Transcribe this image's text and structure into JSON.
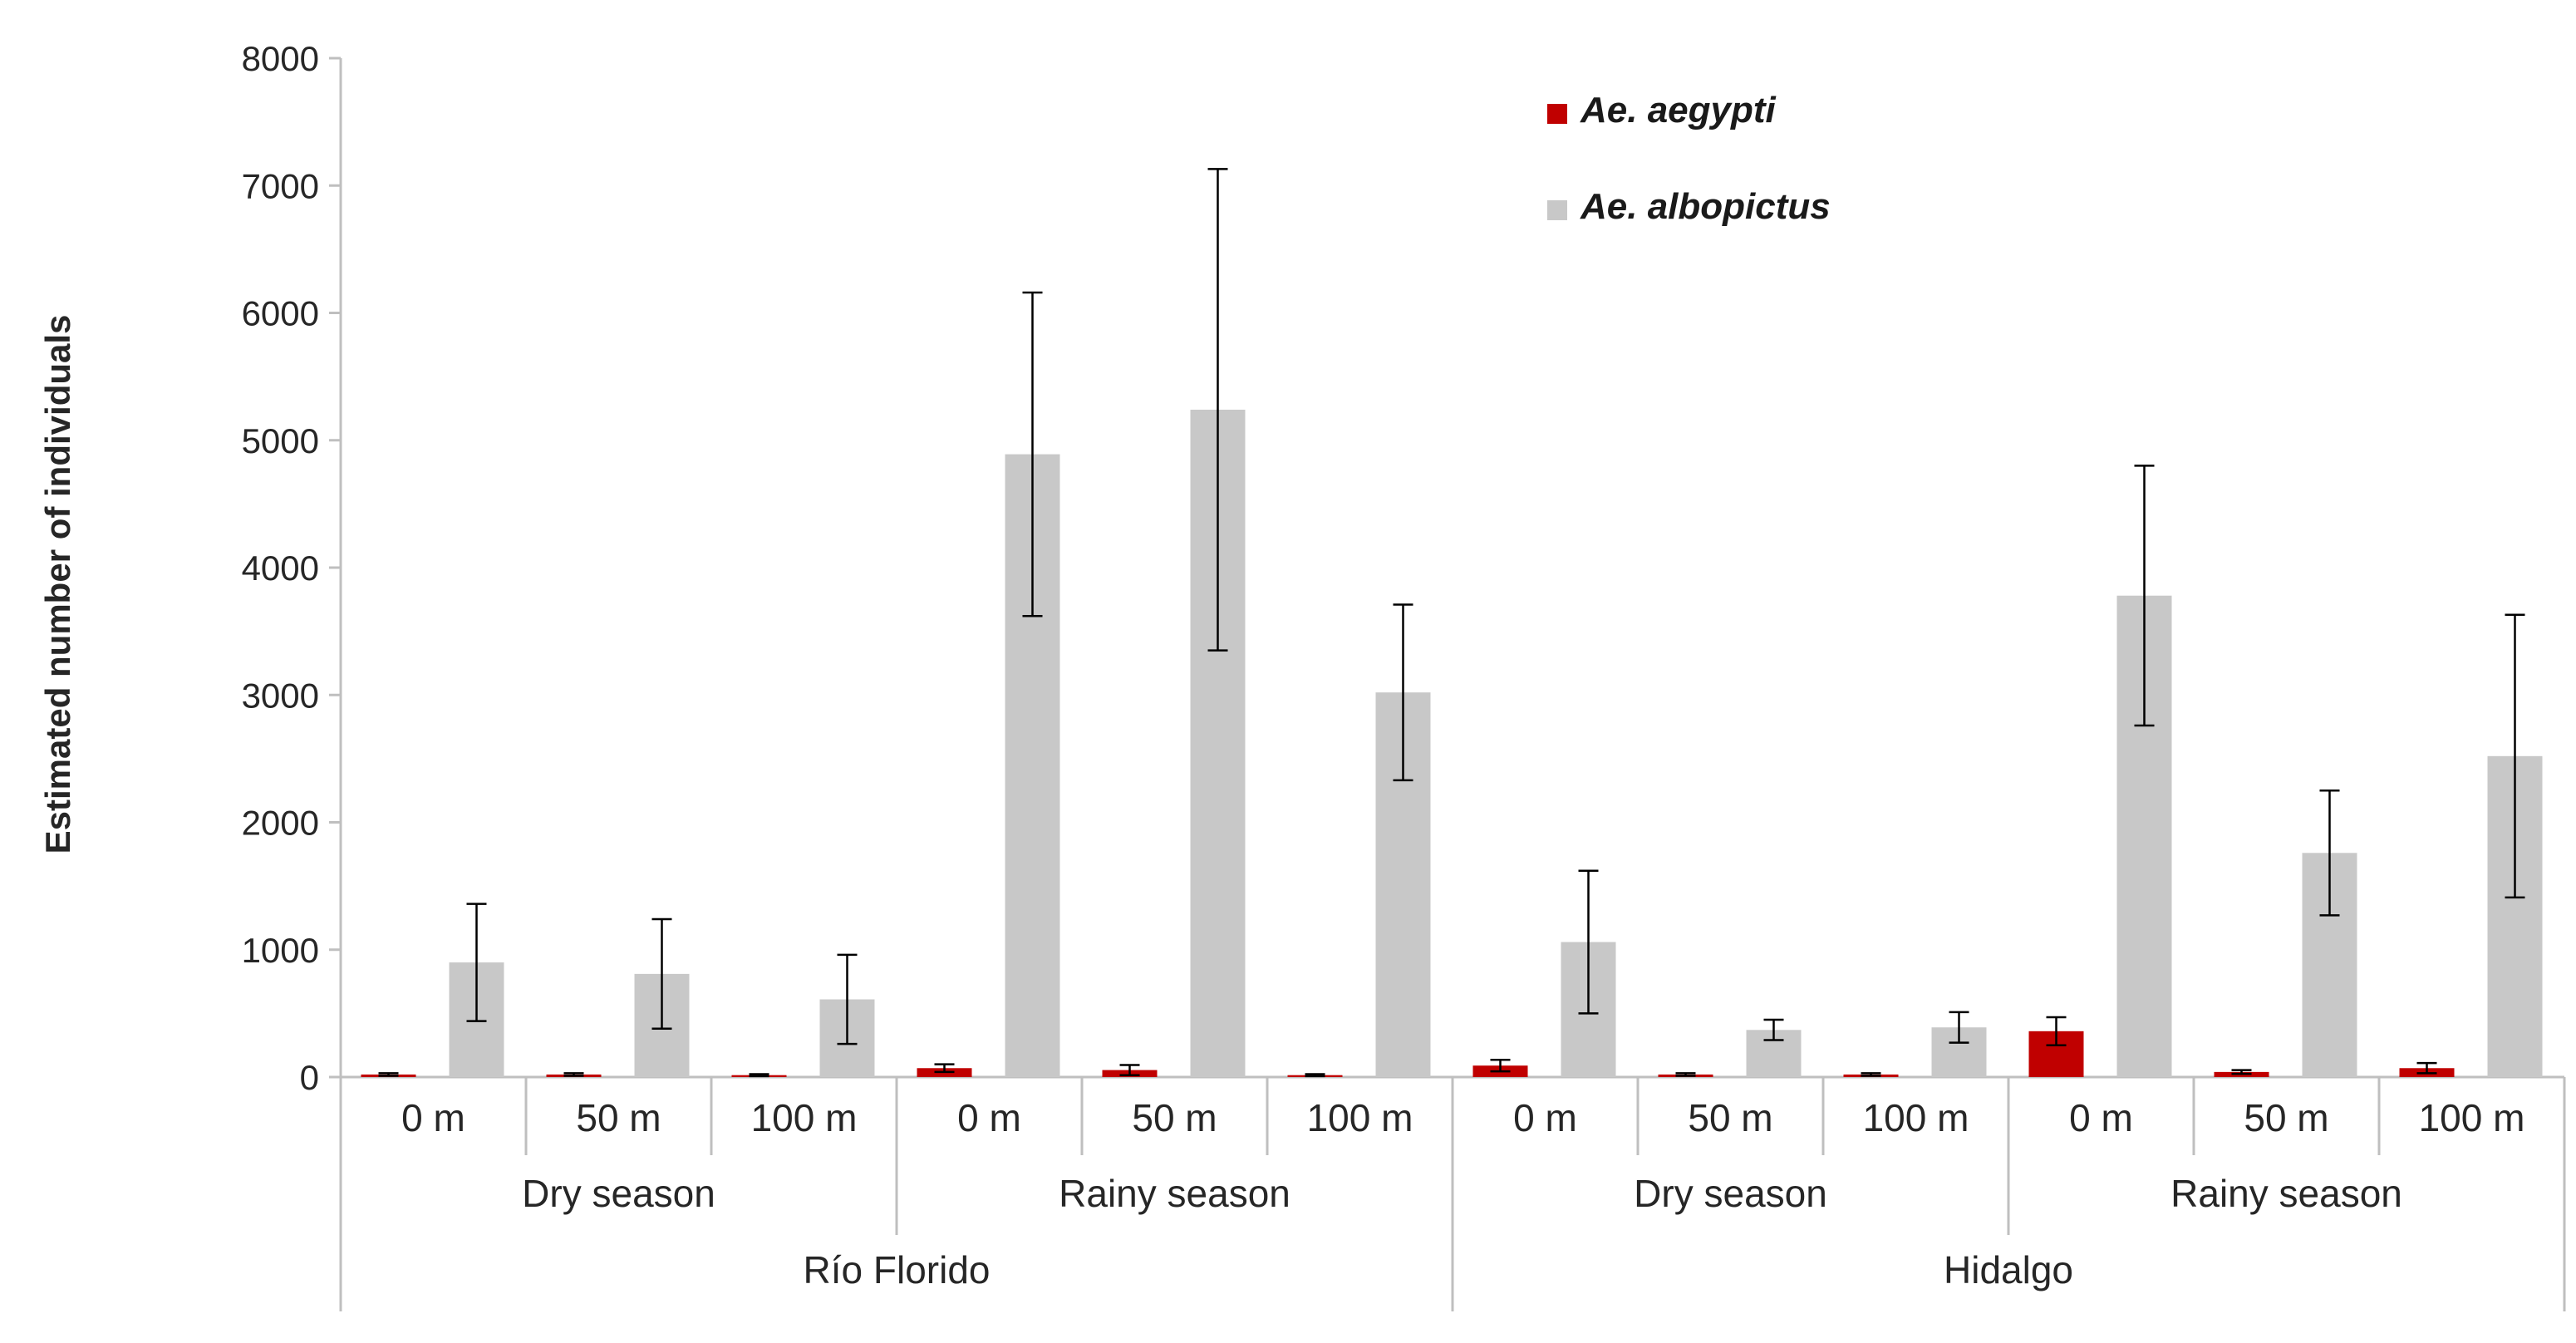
{
  "chart_data": {
    "type": "bar",
    "title": "",
    "xlabel": "",
    "ylabel": "Estimated number of individuals",
    "ylim": [
      0,
      8000
    ],
    "yticks": [
      0,
      1000,
      2000,
      3000,
      4000,
      5000,
      6000,
      7000,
      8000
    ],
    "grid": false,
    "legend_position": "top-right",
    "categories": [
      "0 m",
      "50 m",
      "100 m",
      "0 m",
      "50 m",
      "100 m",
      "0 m",
      "50 m",
      "100 m",
      "0 m",
      "50 m",
      "100 m"
    ],
    "season_groups": [
      {
        "label": "Dry season",
        "span": 3
      },
      {
        "label": "Rainy season",
        "span": 3
      },
      {
        "label": "Dry season",
        "span": 3
      },
      {
        "label": "Rainy season",
        "span": 3
      }
    ],
    "site_groups": [
      {
        "label": "Río Florido",
        "span": 6
      },
      {
        "label": "Hidalgo",
        "span": 6
      }
    ],
    "series": [
      {
        "name": "Ae. aegypti",
        "color": "#c00000",
        "values": [
          20,
          20,
          15,
          70,
          55,
          15,
          90,
          20,
          20,
          360,
          40,
          70
        ],
        "errors": [
          10,
          10,
          8,
          30,
          40,
          8,
          45,
          10,
          10,
          110,
          15,
          40
        ]
      },
      {
        "name": "Ae. albopictus",
        "color": "#c8c8c8",
        "values": [
          900,
          810,
          610,
          4890,
          5240,
          3020,
          1060,
          370,
          390,
          3780,
          1760,
          2520
        ],
        "errors": [
          460,
          430,
          350,
          1270,
          1890,
          690,
          560,
          80,
          120,
          1020,
          490,
          1110
        ]
      }
    ]
  }
}
